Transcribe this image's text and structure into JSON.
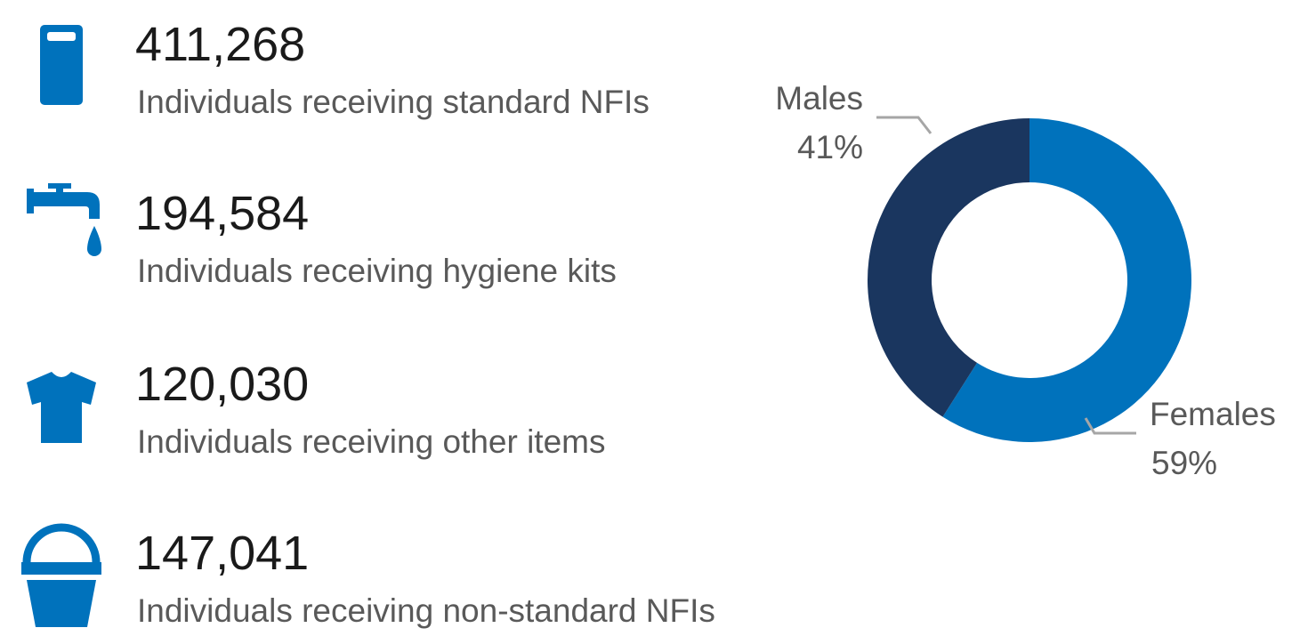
{
  "stats": [
    {
      "value": "411,268",
      "label": "Individuals receiving standard NFIs"
    },
    {
      "value": "194,584",
      "label": "Individuals receiving hygiene kits"
    },
    {
      "value": "120,030",
      "label": "Individuals receiving other items"
    },
    {
      "value": "147,041",
      "label": "Individuals receiving non-standard NFIs"
    }
  ],
  "chart_data": {
    "type": "donut",
    "categories": [
      "Females",
      "Males"
    ],
    "values": [
      59,
      41
    ],
    "value_labels": [
      "59%",
      "41%"
    ],
    "colors": [
      "#0072bc",
      "#1a365f"
    ]
  }
}
